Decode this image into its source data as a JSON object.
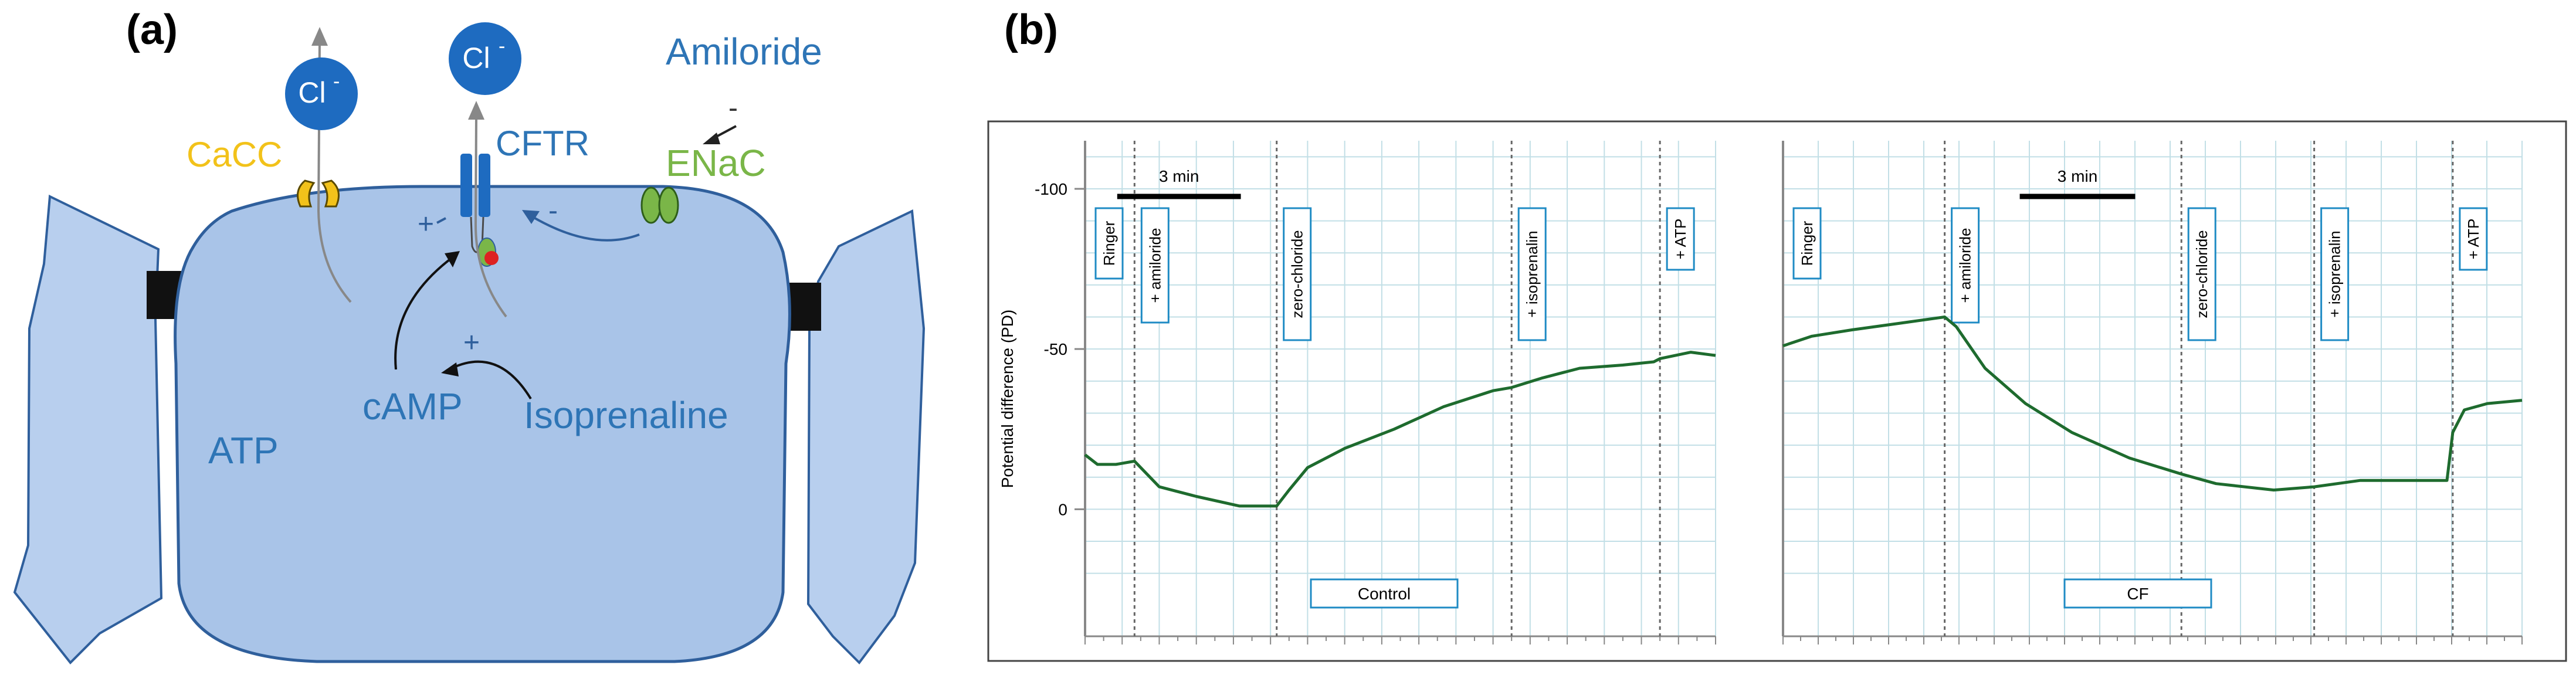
{
  "panel_a": {
    "label": "(a)",
    "cl_ion_left": "Cl",
    "cl_ion_right": "Cl",
    "cl_charge": "-",
    "cacc": "CaCC",
    "cftr": "CFTR",
    "amiloride": "Amiloride",
    "amiloride_sign": "-",
    "enac": "ENaC",
    "cftr_plus": "+",
    "enac_minus": "-",
    "camp_plus": "+",
    "camp": "cAMP",
    "isoprenaline": "Isoprenaline",
    "atp": "ATP",
    "colors": {
      "cell_fill": "#a9c4e8",
      "cell_stroke": "#2f5f9c",
      "ion_blue": "#1e6bc0",
      "cacc_yellow": "#f2c21a",
      "enac_green": "#7ab648",
      "label_blue": "#2e75b6",
      "junction": "#111111"
    }
  },
  "panel_b": {
    "label": "(b)",
    "ylabel": "Potential difference (PD)",
    "scale_label": "3 min",
    "colors": {
      "trace": "#1e6b2e",
      "grid": "#c2dfe6",
      "box": "#1f8bc4",
      "axis": "#888888"
    }
  },
  "chart_data": [
    {
      "type": "line",
      "title": "Control",
      "ylabel": "Potential difference (PD)",
      "y_ticks": [
        "-100",
        "-50",
        "0"
      ],
      "ylim": [
        25,
        -115
      ],
      "scale_bar": "3 min",
      "events": [
        {
          "label": "Ringer",
          "x": 0
        },
        {
          "label": "+ amiloride",
          "x": 0.8
        },
        {
          "label": "zero-chloride",
          "x": 3.1
        },
        {
          "label": "+ isoprenalin",
          "x": 6.9
        },
        {
          "label": "+ ATP",
          "x": 9.3
        }
      ],
      "series": [
        {
          "x": [
            0,
            0.2,
            0.5,
            0.8,
            1.2,
            1.8,
            2.5,
            3.1,
            3.3,
            3.6,
            4.2,
            5.0,
            5.8,
            6.6,
            6.9,
            7.4,
            8.0,
            8.7,
            9.2,
            9.3,
            9.8,
            10.2
          ],
          "y": [
            -17,
            -14,
            -14,
            -15,
            -7,
            -4,
            -1,
            -1,
            -6,
            -13,
            -19,
            -25,
            -32,
            -37,
            -38,
            -41,
            -44,
            -45,
            -46,
            -47,
            -49,
            -48
          ]
        }
      ]
    },
    {
      "type": "line",
      "title": "CF",
      "ylim": [
        25,
        -115
      ],
      "scale_bar": "3 min",
      "events": [
        {
          "label": "Ringer",
          "x": 0
        },
        {
          "label": "+ amiloride",
          "x": 2.8
        },
        {
          "label": "zero-chloride",
          "x": 6.9
        },
        {
          "label": "+ isoprenalin",
          "x": 9.2
        },
        {
          "label": "+ ATP",
          "x": 11.6
        }
      ],
      "series": [
        {
          "x": [
            0,
            0.5,
            1.2,
            2.0,
            2.8,
            3.0,
            3.5,
            4.2,
            5.0,
            6.0,
            6.9,
            7.5,
            8.5,
            9.2,
            10.0,
            10.8,
            11.5,
            11.6,
            11.8,
            12.2,
            12.8
          ],
          "y": [
            -51,
            -54,
            -56,
            -58,
            -60,
            -57,
            -44,
            -33,
            -24,
            -16,
            -11,
            -8,
            -6,
            -7,
            -9,
            -9,
            -9,
            -24,
            -31,
            -33,
            -34
          ]
        }
      ]
    }
  ]
}
